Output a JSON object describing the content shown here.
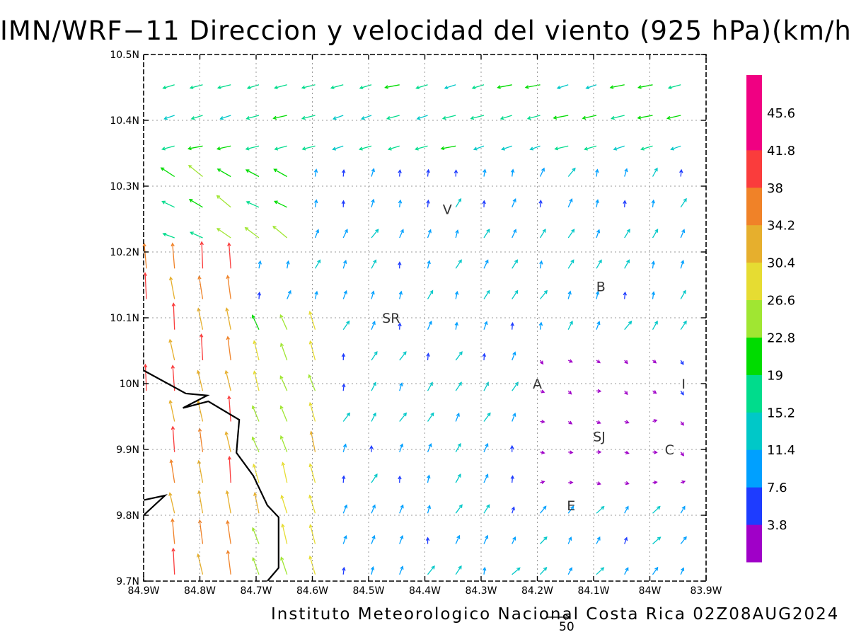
{
  "title": "IMN/WRF−11 Direccion y velocidad del viento (925 hPa)(km/h)",
  "footer": "Instituto Meteorologico Nacional Costa Rica 02Z08AUG2024",
  "scale_arrow": {
    "value_label": "50"
  },
  "map": {
    "lon_range": [
      -84.9,
      -83.9
    ],
    "lat_range": [
      9.7,
      10.5
    ],
    "lon_ticks": [
      "84.9W",
      "84.8W",
      "84.7W",
      "84.6W",
      "84.5W",
      "84.4W",
      "84.3W",
      "84.2W",
      "84.1W",
      "84W",
      "83.9W"
    ],
    "lat_ticks": [
      "9.7N",
      "9.8N",
      "9.9N",
      "10N",
      "10.1N",
      "10.2N",
      "10.3N",
      "10.4N",
      "10.5N"
    ],
    "places": [
      {
        "label": "V",
        "lon": -84.36,
        "lat": 10.265
      },
      {
        "label": "B",
        "lon": -84.087,
        "lat": 10.148
      },
      {
        "label": "SR",
        "lon": -84.46,
        "lat": 10.1
      },
      {
        "label": "A",
        "lon": -84.2,
        "lat": 10.0
      },
      {
        "label": "I",
        "lon": -83.94,
        "lat": 10.0
      },
      {
        "label": "SJ",
        "lon": -84.09,
        "lat": 9.92
      },
      {
        "label": "C",
        "lon": -83.965,
        "lat": 9.9
      },
      {
        "label": "E",
        "lon": -84.14,
        "lat": 9.815
      }
    ],
    "coastline": [
      [
        -84.9,
        10.02
      ],
      [
        -84.825,
        9.985
      ],
      [
        -84.787,
        9.982
      ],
      [
        -84.83,
        9.963
      ],
      [
        -84.785,
        9.973
      ],
      [
        -84.73,
        9.945
      ],
      [
        -84.735,
        9.895
      ],
      [
        -84.705,
        9.86
      ],
      [
        -84.68,
        9.815
      ],
      [
        -84.66,
        9.797
      ],
      [
        -84.66,
        9.72
      ],
      [
        -84.68,
        9.7
      ]
    ],
    "coastline2": [
      [
        -84.9,
        9.8
      ],
      [
        -84.862,
        9.83
      ],
      [
        -84.9,
        9.823
      ]
    ]
  },
  "colorbar": {
    "labels": [
      "3.8",
      "7.6",
      "11.4",
      "15.2",
      "19",
      "22.8",
      "26.6",
      "30.4",
      "34.2",
      "38",
      "41.8",
      "45.6"
    ],
    "colors": [
      "#a000c8",
      "#1e3cff",
      "#00a0ff",
      "#00c8c8",
      "#00dc8c",
      "#00dc00",
      "#a0e632",
      "#e6dc32",
      "#e6af2d",
      "#f08228",
      "#fa3c3c",
      "#f00082"
    ]
  },
  "chart_data": {
    "type": "vector-field",
    "title": "IMN/WRF−11 Direccion y velocidad del viento (925 hPa)(km/h)",
    "units": "km/h",
    "level": "925 hPa",
    "valid_time": "02Z08AUG2024",
    "domain": {
      "lon": [
        -84.9,
        -83.9
      ],
      "lat": [
        9.7,
        10.5
      ]
    },
    "grid_spacing_deg": 0.05,
    "reference_vector": 50,
    "regions": [
      {
        "area": "north strip (10.35N–10.5N)",
        "direction_deg_toward": 255,
        "speed_kmh": 20
      },
      {
        "area": "west coast (84.9W–84.7W, 9.7N–10.15N)",
        "direction_deg_toward": 355,
        "speed_kmh": 40
      },
      {
        "area": "west-central (84.7W–84.55W)",
        "direction_deg_toward": 345,
        "speed_kmh": 30
      },
      {
        "area": "northwest corner",
        "direction_deg_toward": 300,
        "speed_kmh": 27
      },
      {
        "area": "central valley",
        "direction_deg_toward": 25,
        "speed_kmh": 13
      },
      {
        "area": "east (84.2W–83.9W, 9.85N–10.05N)",
        "direction_deg_toward": 120,
        "speed_kmh": 5
      }
    ]
  }
}
